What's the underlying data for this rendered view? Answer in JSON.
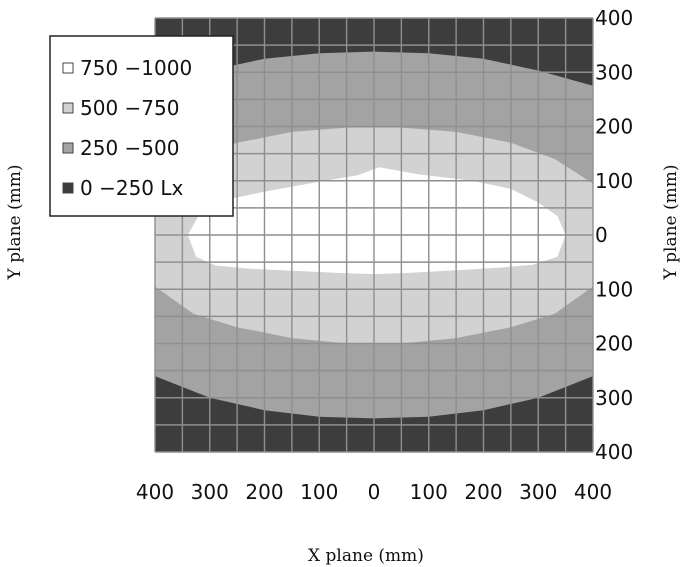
{
  "chart_data": {
    "type": "heatmap",
    "title": "",
    "xlabel": "X plane (mm)",
    "ylabel_left": "Y plane (mm)",
    "ylabel_right": "Y plane (mm)",
    "xlim": [
      -400,
      400
    ],
    "ylim": [
      -400,
      400
    ],
    "x_ticks": [
      "400",
      "300",
      "200",
      "100",
      "0",
      "100",
      "200",
      "300",
      "400"
    ],
    "y_ticks": [
      "400",
      "300",
      "200",
      "100",
      "0",
      "100",
      "200",
      "300",
      "400"
    ],
    "grid": true,
    "legend_position": "top-left",
    "legend": [
      {
        "label": "750 −1000",
        "color": "#ffffff"
      },
      {
        "label": "500 −750",
        "color": "#d2d2d2"
      },
      {
        "label": "250 −500",
        "color": "#a3a3a3"
      },
      {
        "label": "0 −250 Lx",
        "color": "#3d3d3d"
      }
    ],
    "contours": [
      {
        "band": "0 −250 Lx",
        "color": "#3d3d3d",
        "region": "outside 250 Lx contour (corners and edges)"
      },
      {
        "band": "250 −500",
        "color": "#a3a3a3",
        "boundary": [
          [
            -400,
            275
          ],
          [
            -300,
            303
          ],
          [
            -200,
            325
          ],
          [
            -100,
            335
          ],
          [
            0,
            338
          ],
          [
            100,
            335
          ],
          [
            200,
            325
          ],
          [
            300,
            303
          ],
          [
            400,
            275
          ],
          [
            400,
            -260
          ],
          [
            300,
            -300
          ],
          [
            200,
            -323
          ],
          [
            100,
            -335
          ],
          [
            0,
            -338
          ],
          [
            -100,
            -335
          ],
          [
            -200,
            -323
          ],
          [
            -300,
            -300
          ],
          [
            -400,
            -260
          ]
        ]
      },
      {
        "band": "500 −750",
        "color": "#d2d2d2",
        "boundary": [
          [
            -400,
            95
          ],
          [
            -330,
            140
          ],
          [
            -250,
            170
          ],
          [
            -150,
            190
          ],
          [
            -50,
            198
          ],
          [
            50,
            198
          ],
          [
            150,
            190
          ],
          [
            250,
            170
          ],
          [
            330,
            140
          ],
          [
            400,
            95
          ],
          [
            400,
            -95
          ],
          [
            330,
            -145
          ],
          [
            250,
            -170
          ],
          [
            150,
            -190
          ],
          [
            50,
            -200
          ],
          [
            -50,
            -200
          ],
          [
            -150,
            -190
          ],
          [
            -250,
            -170
          ],
          [
            -330,
            -145
          ],
          [
            -400,
            -95
          ]
        ]
      },
      {
        "band": "750 −1000",
        "color": "#ffffff",
        "boundary": [
          [
            -340,
            0
          ],
          [
            -315,
            45
          ],
          [
            -270,
            65
          ],
          [
            -200,
            80
          ],
          [
            -100,
            98
          ],
          [
            -30,
            110
          ],
          [
            10,
            125
          ],
          [
            80,
            112
          ],
          [
            180,
            100
          ],
          [
            250,
            85
          ],
          [
            300,
            60
          ],
          [
            335,
            35
          ],
          [
            350,
            0
          ],
          [
            335,
            -40
          ],
          [
            290,
            -55
          ],
          [
            230,
            -60
          ],
          [
            150,
            -65
          ],
          [
            60,
            -70
          ],
          [
            0,
            -72
          ],
          [
            -60,
            -70
          ],
          [
            -150,
            -66
          ],
          [
            -230,
            -62
          ],
          [
            -290,
            -56
          ],
          [
            -325,
            -40
          ]
        ]
      }
    ]
  }
}
